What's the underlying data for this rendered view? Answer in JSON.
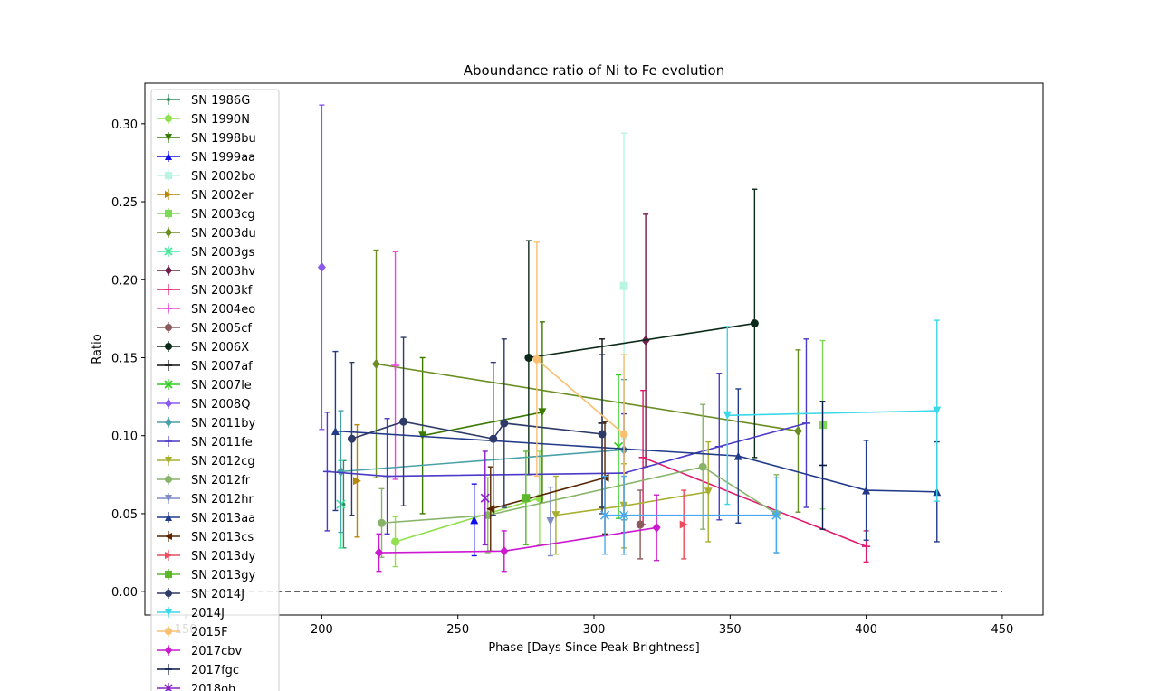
{
  "chart_data": {
    "type": "scatter",
    "title": "Aboundance ratio of Ni to Fe evolution",
    "xlabel": "Phase [Days Since Peak Brightness]",
    "ylabel": "Ratio",
    "xlim": [
      135,
      465
    ],
    "ylim": [
      -0.015,
      0.326
    ],
    "xticks": [
      150,
      200,
      250,
      300,
      350,
      400,
      450
    ],
    "yticks": [
      0.0,
      0.05,
      0.1,
      0.15,
      0.2,
      0.25,
      0.3
    ],
    "xtick_labels": [
      "150",
      "200",
      "250",
      "300",
      "350",
      "400",
      "450"
    ],
    "ytick_labels": [
      "0.00",
      "0.05",
      "0.10",
      "0.15",
      "0.20",
      "0.25",
      "0.30"
    ],
    "grid": false,
    "legend_position": "upper-left",
    "reference_line": {
      "y": 0.0,
      "x_range": [
        150,
        450
      ],
      "style": "dashed",
      "color": "#000000"
    },
    "series": [
      {
        "name": "SN 1986G",
        "color": "#2e8b57",
        "marker": "dot",
        "points": [
          [
            208,
            0.056,
            0.028
          ]
        ]
      },
      {
        "name": "SN 1990N",
        "color": "#90e050",
        "marker": "circle",
        "points": [
          [
            227,
            0.032,
            0.016
          ],
          [
            280,
            0.06,
            0.03
          ]
        ]
      },
      {
        "name": "SN 1998bu",
        "color": "#3a7a00",
        "marker": "tri-down",
        "points": [
          [
            237,
            0.1,
            0.05
          ],
          [
            281,
            0.115,
            0.058
          ]
        ]
      },
      {
        "name": "SN 1999aa",
        "color": "#1010ee",
        "marker": "tri-up",
        "points": [
          [
            256,
            0.046,
            0.023
          ]
        ]
      },
      {
        "name": "SN 2002bo",
        "color": "#b7f5df",
        "marker": "square",
        "points": [
          [
            311,
            0.196,
            0.098
          ]
        ]
      },
      {
        "name": "SN 2002er",
        "color": "#b8860b",
        "marker": "tri-right",
        "points": [
          [
            213,
            0.071,
            0.036
          ]
        ]
      },
      {
        "name": "SN 2003cg",
        "color": "#7ed957",
        "marker": "square",
        "points": [
          [
            384,
            0.107,
            0.054
          ]
        ]
      },
      {
        "name": "SN 2003du",
        "color": "#6b8e23",
        "marker": "diamond",
        "points": [
          [
            220,
            0.146,
            0.073
          ],
          [
            375,
            0.103,
            0.052
          ]
        ]
      },
      {
        "name": "SN 2003gs",
        "color": "#3ee89a",
        "marker": "x",
        "points": [
          [
            207,
            0.056,
            0.028
          ]
        ]
      },
      {
        "name": "SN 2003hv",
        "color": "#6e1e4a",
        "marker": "diamond",
        "points": [
          [
            319,
            0.161,
            0.081
          ]
        ]
      },
      {
        "name": "SN 2003kf",
        "color": "#e0186e",
        "marker": "hline",
        "points": [
          [
            318,
            0.086,
            0.043
          ],
          [
            400,
            0.029,
            0.01
          ]
        ]
      },
      {
        "name": "SN 2004eo",
        "color": "#e84ad8",
        "marker": "star",
        "points": [
          [
            227,
            0.145,
            0.073
          ]
        ]
      },
      {
        "name": "SN 2005cf",
        "color": "#8b5a5a",
        "marker": "circle",
        "points": [
          [
            317,
            0.043,
            0.022
          ]
        ]
      },
      {
        "name": "SN 2006X",
        "color": "#0b2a18",
        "marker": "circle",
        "points": [
          [
            276,
            0.15,
            0.075
          ],
          [
            359,
            0.172,
            0.086
          ]
        ]
      },
      {
        "name": "SN 2007af",
        "color": "#111111",
        "marker": "hline",
        "points": [
          [
            303,
            0.108,
            0.054
          ]
        ]
      },
      {
        "name": "SN 2007le",
        "color": "#2fcc20",
        "marker": "x",
        "points": [
          [
            309,
            0.093,
            0.046
          ]
        ]
      },
      {
        "name": "SN 2008Q",
        "color": "#8a5af0",
        "marker": "diamond",
        "points": [
          [
            200,
            0.208,
            0.104
          ]
        ]
      },
      {
        "name": "SN 2011by",
        "color": "#4aa0a8",
        "marker": "diamond",
        "points": [
          [
            207,
            0.077,
            0.039
          ],
          [
            311,
            0.091,
            0.045
          ]
        ]
      },
      {
        "name": "SN 2011fe",
        "color": "#4a3ac8",
        "marker": "hline",
        "points": [
          [
            202,
            0.077,
            0.038
          ],
          [
            224,
            0.074,
            0.037
          ],
          [
            311,
            0.076,
            0.038
          ],
          [
            346,
            0.093,
            0.047
          ],
          [
            378,
            0.108,
            0.054
          ]
        ]
      },
      {
        "name": "SN 2012cg",
        "color": "#a8b030",
        "marker": "tri-down",
        "points": [
          [
            286,
            0.049,
            0.025
          ],
          [
            311,
            0.055,
            0.027
          ],
          [
            342,
            0.064,
            0.032
          ]
        ]
      },
      {
        "name": "SN 2012fr",
        "color": "#88b46a",
        "marker": "circle",
        "points": [
          [
            222,
            0.044,
            0.022
          ],
          [
            261,
            0.049,
            0.024
          ],
          [
            340,
            0.08,
            0.04
          ],
          [
            367,
            0.05,
            0.025
          ]
        ]
      },
      {
        "name": "SN 2012hr",
        "color": "#7f8cc8",
        "marker": "tri-down",
        "points": [
          [
            284,
            0.045,
            0.022
          ]
        ]
      },
      {
        "name": "SN 2013aa",
        "color": "#223a8a",
        "marker": "tri-up",
        "points": [
          [
            205,
            0.103,
            0.051
          ],
          [
            353,
            0.087,
            0.043
          ],
          [
            400,
            0.065,
            0.032
          ],
          [
            426,
            0.064,
            0.032
          ]
        ]
      },
      {
        "name": "SN 2013cs",
        "color": "#5a2600",
        "marker": "tri-left",
        "points": [
          [
            262,
            0.053,
            0.027
          ],
          [
            304,
            0.073,
            0.036
          ]
        ]
      },
      {
        "name": "SN 2013dy",
        "color": "#ee4a5e",
        "marker": "tri-right",
        "points": [
          [
            333,
            0.043,
            0.022
          ]
        ]
      },
      {
        "name": "SN 2013gy",
        "color": "#5ab82a",
        "marker": "square",
        "points": [
          [
            275,
            0.06,
            0.03
          ]
        ]
      },
      {
        "name": "SN 2014J",
        "color": "#2e3a68",
        "marker": "hexagon",
        "points": [
          [
            211,
            0.098,
            0.049
          ],
          [
            230,
            0.109,
            0.054
          ],
          [
            263,
            0.098,
            0.049
          ],
          [
            267,
            0.108,
            0.054
          ],
          [
            303,
            0.101,
            0.051
          ]
        ]
      },
      {
        "name": "2014J",
        "color": "#3ad8e8",
        "marker": "tri-down",
        "points": [
          [
            349,
            0.113,
            0.057
          ],
          [
            426,
            0.116,
            0.058
          ]
        ]
      },
      {
        "name": "2015F",
        "color": "#f8c070",
        "marker": "circle",
        "points": [
          [
            279,
            0.149,
            0.075
          ],
          [
            311,
            0.101,
            0.051
          ]
        ]
      },
      {
        "name": "2017cbv",
        "color": "#cc18d0",
        "marker": "diamond",
        "points": [
          [
            221,
            0.025,
            0.012
          ],
          [
            267,
            0.026,
            0.013
          ],
          [
            323,
            0.041,
            0.021
          ]
        ]
      },
      {
        "name": "2017fgc",
        "color": "#0a1a48",
        "marker": "hline",
        "points": [
          [
            384,
            0.081,
            0.041
          ]
        ]
      },
      {
        "name": "2018oh",
        "color": "#8a20c8",
        "marker": "x",
        "points": [
          [
            260,
            0.06,
            0.03
          ]
        ]
      },
      {
        "name": "",
        "color": "#4aa8f0",
        "marker": "x",
        "points": [
          [
            304,
            0.049,
            0.025
          ],
          [
            311,
            0.049,
            0.025
          ],
          [
            367,
            0.049,
            0.024
          ]
        ]
      }
    ]
  }
}
